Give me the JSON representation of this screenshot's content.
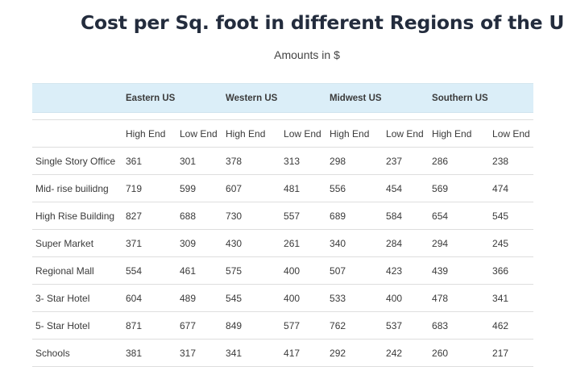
{
  "title": "Cost per Sq. foot in different Regions of the USA",
  "subtitle": "Amounts in $",
  "regions": [
    "Eastern US",
    "Western US",
    "Midwest US",
    "Southern US"
  ],
  "sub_headers": [
    "High End",
    "Low End",
    "High End",
    "Low End",
    "High End",
    "Low End",
    "High End",
    "Low End"
  ],
  "rows": [
    {
      "label": "Single Story Office",
      "values": [
        "361",
        "301",
        "378",
        "313",
        "298",
        "237",
        "286",
        "238"
      ]
    },
    {
      "label": "Mid- rise builidng",
      "values": [
        "719",
        "599",
        "607",
        "481",
        "556",
        "454",
        "569",
        "474"
      ]
    },
    {
      "label": "High Rise Building",
      "values": [
        "827",
        "688",
        "730",
        "557",
        "689",
        "584",
        "654",
        "545"
      ]
    },
    {
      "label": "Super Market",
      "values": [
        "371",
        "309",
        "430",
        "261",
        "340",
        "284",
        "294",
        "245"
      ]
    },
    {
      "label": "Regional Mall",
      "values": [
        "554",
        "461",
        "575",
        "400",
        "507",
        "423",
        "439",
        "366"
      ]
    },
    {
      "label": "3- Star Hotel",
      "values": [
        "604",
        "489",
        "545",
        "400",
        "533",
        "400",
        "478",
        "341"
      ]
    },
    {
      "label": "5- Star Hotel",
      "values": [
        "871",
        "677",
        "849",
        "577",
        "762",
        "537",
        "683",
        "462"
      ]
    },
    {
      "label": "Schools",
      "values": [
        "381",
        "317",
        "341",
        "417",
        "292",
        "242",
        "260",
        "217"
      ]
    }
  ]
}
